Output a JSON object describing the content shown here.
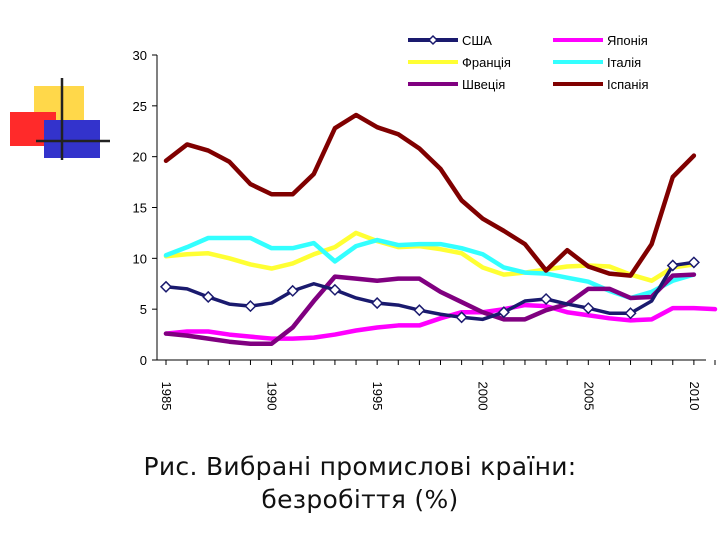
{
  "caption": {
    "line1": "Рис. Вибрані промислові країни:",
    "line2": "безробіття (%)"
  },
  "decoration": {
    "yellow": "#FFD84A",
    "red": "#FF2A2A",
    "blue": "#3333CC",
    "line": "#222222"
  },
  "chart_data": {
    "type": "line",
    "title": "",
    "xlabel": "",
    "ylabel": "",
    "xlim": [
      1985,
      2011
    ],
    "ylim": [
      0,
      30
    ],
    "yticks": [
      0,
      5,
      10,
      15,
      20,
      25,
      30
    ],
    "xticks": [
      1985,
      1990,
      1995,
      2000,
      2005,
      2010
    ],
    "grid": false,
    "legend_position": "top-right",
    "series": [
      {
        "name": "США",
        "color": "#1A1A6E",
        "marker": "diamond",
        "x": [
          1985,
          1986,
          1987,
          1988,
          1989,
          1990,
          1991,
          1992,
          1993,
          1994,
          1995,
          1996,
          1997,
          1998,
          1999,
          2000,
          2001,
          2002,
          2003,
          2004,
          2005,
          2006,
          2007,
          2008,
          2009,
          2010
        ],
        "values": [
          7.2,
          7.0,
          6.2,
          5.5,
          5.3,
          5.6,
          6.8,
          7.5,
          6.9,
          6.1,
          5.6,
          5.4,
          4.9,
          4.5,
          4.2,
          4.0,
          4.7,
          5.8,
          6.0,
          5.5,
          5.1,
          4.6,
          4.6,
          5.8,
          9.3,
          9.6
        ]
      },
      {
        "name": "Японія",
        "color": "#FF00FF",
        "x": [
          1985,
          1986,
          1987,
          1988,
          1989,
          1990,
          1991,
          1992,
          1993,
          1994,
          1995,
          1996,
          1997,
          1998,
          1999,
          2000,
          2001,
          2002,
          2003,
          2004,
          2005,
          2006,
          2007,
          2008,
          2009,
          2010,
          2011
        ],
        "values": [
          2.6,
          2.8,
          2.8,
          2.5,
          2.3,
          2.1,
          2.1,
          2.2,
          2.5,
          2.9,
          3.2,
          3.4,
          3.4,
          4.1,
          4.7,
          4.7,
          5.0,
          5.4,
          5.3,
          4.7,
          4.4,
          4.1,
          3.9,
          4.0,
          5.1,
          5.1,
          5.0
        ]
      },
      {
        "name": "Франція",
        "color": "#FFFF33",
        "x": [
          1985,
          1986,
          1987,
          1988,
          1989,
          1990,
          1991,
          1992,
          1993,
          1994,
          1995,
          1996,
          1997,
          1998,
          1999,
          2000,
          2001,
          2002,
          2003,
          2004,
          2005,
          2006,
          2007,
          2008,
          2009,
          2010
        ],
        "values": [
          10.2,
          10.4,
          10.5,
          10.0,
          9.4,
          9.0,
          9.5,
          10.4,
          11.1,
          12.5,
          11.7,
          11.1,
          11.2,
          10.9,
          10.5,
          9.1,
          8.4,
          8.6,
          8.9,
          9.2,
          9.3,
          9.2,
          8.4,
          7.8,
          9.1,
          9.4
        ]
      },
      {
        "name": "Італія",
        "color": "#33FFFF",
        "x": [
          1985,
          1986,
          1987,
          1988,
          1989,
          1990,
          1991,
          1992,
          1993,
          1994,
          1995,
          1996,
          1997,
          1998,
          1999,
          2000,
          2001,
          2002,
          2003,
          2004,
          2005,
          2006,
          2007,
          2008,
          2009,
          2010
        ],
        "values": [
          10.3,
          11.1,
          12.0,
          12.0,
          12.0,
          11.0,
          11.0,
          11.5,
          9.7,
          11.2,
          11.8,
          11.3,
          11.4,
          11.4,
          11.0,
          10.4,
          9.1,
          8.6,
          8.5,
          8.1,
          7.7,
          6.8,
          6.1,
          6.7,
          7.8,
          8.4
        ]
      },
      {
        "name": "Швеція",
        "color": "#800080",
        "x": [
          1985,
          1986,
          1987,
          1988,
          1989,
          1990,
          1991,
          1992,
          1993,
          1994,
          1995,
          1996,
          1997,
          1998,
          1999,
          2000,
          2001,
          2002,
          2003,
          2004,
          2005,
          2006,
          2007,
          2008,
          2009,
          2010
        ],
        "values": [
          2.6,
          2.4,
          2.1,
          1.8,
          1.6,
          1.6,
          3.2,
          5.8,
          8.2,
          8.0,
          7.8,
          8.0,
          8.0,
          6.7,
          5.7,
          4.7,
          4.0,
          4.0,
          4.9,
          5.5,
          7.0,
          7.0,
          6.1,
          6.2,
          8.3,
          8.4
        ]
      },
      {
        "name": "Іспанія",
        "color": "#800000",
        "x": [
          1985,
          1986,
          1987,
          1988,
          1989,
          1990,
          1991,
          1992,
          1993,
          1994,
          1995,
          1996,
          1997,
          1998,
          1999,
          2000,
          2001,
          2002,
          2003,
          2004,
          2005,
          2006,
          2007,
          2008,
          2009,
          2010
        ],
        "values": [
          19.6,
          21.2,
          20.6,
          19.5,
          17.3,
          16.3,
          16.3,
          18.3,
          22.8,
          24.1,
          22.9,
          22.2,
          20.8,
          18.8,
          15.7,
          13.9,
          12.7,
          11.4,
          8.8,
          10.8,
          9.2,
          8.5,
          8.3,
          11.4,
          18.0,
          20.1
        ]
      }
    ]
  }
}
